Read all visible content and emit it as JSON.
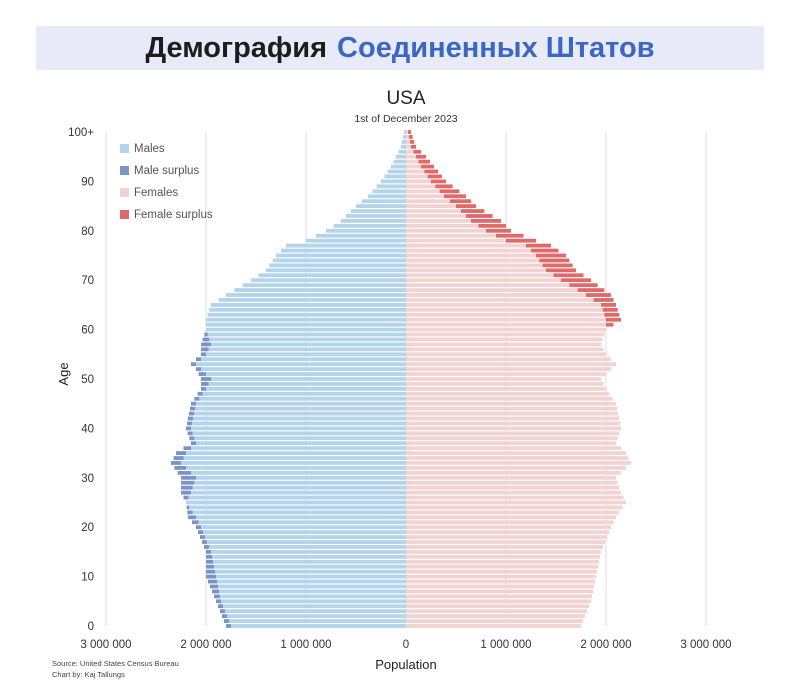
{
  "banner": {
    "title_part1": "Демография",
    "title_part2": "Соединенных Штатов",
    "title_part2_color": "#3b67c4"
  },
  "chart_data": {
    "type": "bar",
    "orientation": "horizontal-population-pyramid",
    "title": "USA",
    "subtitle": "1st of December 2023",
    "xlabel": "Population",
    "ylabel": "Age",
    "xlim": [
      -3000000,
      3000000
    ],
    "ylim": [
      0,
      100
    ],
    "x_ticks": [
      -3000000,
      -2000000,
      -1000000,
      0,
      1000000,
      2000000,
      3000000
    ],
    "x_tick_labels": [
      "3 000 000",
      "2 000 000",
      "1 000 000",
      "0",
      "1 000 000",
      "2 000 000",
      "3 000 000"
    ],
    "y_ticks": [
      0,
      10,
      20,
      30,
      40,
      50,
      60,
      70,
      80,
      90,
      100
    ],
    "y_tick_labels": [
      "0",
      "10",
      "20",
      "30",
      "40",
      "50",
      "60",
      "70",
      "80",
      "90",
      "100+"
    ],
    "grid": "vertical",
    "legend_position": "top-left",
    "colors": {
      "males": "#b3d4ea",
      "male_surplus": "#7b94c7",
      "females": "#f2d3d3",
      "female_surplus": "#de6a6a"
    },
    "series": [
      {
        "name": "Males",
        "age_points": [
          [
            0,
            1800000
          ],
          [
            5,
            1900000
          ],
          [
            10,
            2000000
          ],
          [
            15,
            2000000
          ],
          [
            20,
            2100000
          ],
          [
            22,
            2180000
          ],
          [
            25,
            2200000
          ],
          [
            27,
            2250000
          ],
          [
            30,
            2250000
          ],
          [
            33,
            2350000
          ],
          [
            35,
            2300000
          ],
          [
            37,
            2150000
          ],
          [
            40,
            2200000
          ],
          [
            45,
            2150000
          ],
          [
            48,
            2050000
          ],
          [
            50,
            2050000
          ],
          [
            52,
            2100000
          ],
          [
            53,
            2150000
          ],
          [
            55,
            2050000
          ],
          [
            57,
            2050000
          ],
          [
            60,
            2000000
          ],
          [
            62,
            2000000
          ],
          [
            65,
            1950000
          ],
          [
            67,
            1800000
          ],
          [
            70,
            1550000
          ],
          [
            72,
            1400000
          ],
          [
            75,
            1300000
          ],
          [
            77,
            1200000
          ],
          [
            78,
            1000000
          ],
          [
            80,
            800000
          ],
          [
            82,
            650000
          ],
          [
            85,
            500000
          ],
          [
            87,
            380000
          ],
          [
            90,
            250000
          ],
          [
            93,
            150000
          ],
          [
            95,
            100000
          ],
          [
            97,
            50000
          ],
          [
            100,
            20000
          ]
        ]
      },
      {
        "name": "Females",
        "age_points": [
          [
            0,
            1750000
          ],
          [
            5,
            1850000
          ],
          [
            10,
            1900000
          ],
          [
            15,
            1950000
          ],
          [
            20,
            2050000
          ],
          [
            22,
            2100000
          ],
          [
            25,
            2200000
          ],
          [
            27,
            2150000
          ],
          [
            30,
            2100000
          ],
          [
            33,
            2250000
          ],
          [
            35,
            2200000
          ],
          [
            37,
            2100000
          ],
          [
            40,
            2150000
          ],
          [
            45,
            2100000
          ],
          [
            48,
            2000000
          ],
          [
            50,
            1950000
          ],
          [
            52,
            2050000
          ],
          [
            53,
            2100000
          ],
          [
            55,
            2000000
          ],
          [
            57,
            1950000
          ],
          [
            60,
            2000000
          ],
          [
            62,
            2150000
          ],
          [
            65,
            2100000
          ],
          [
            67,
            2050000
          ],
          [
            70,
            1850000
          ],
          [
            72,
            1700000
          ],
          [
            75,
            1600000
          ],
          [
            77,
            1450000
          ],
          [
            78,
            1300000
          ],
          [
            80,
            1050000
          ],
          [
            82,
            950000
          ],
          [
            85,
            700000
          ],
          [
            87,
            600000
          ],
          [
            90,
            400000
          ],
          [
            93,
            280000
          ],
          [
            95,
            200000
          ],
          [
            97,
            100000
          ],
          [
            100,
            50000
          ]
        ]
      }
    ],
    "source": "Source: United States Census Bureau",
    "credit": "Chart by: Kaj Tallungs"
  }
}
